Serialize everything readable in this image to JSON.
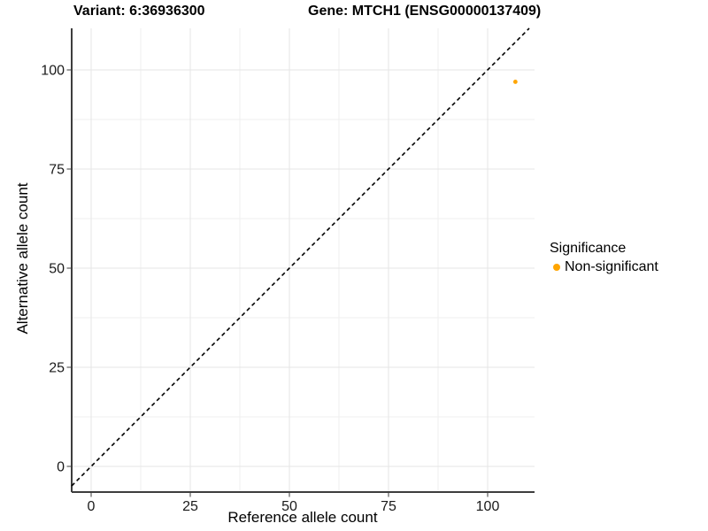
{
  "chart_data": {
    "type": "scatter",
    "title_left": "Variant: 6:36936300",
    "title_right": "Gene: MTCH1 (ENSG00000137409)",
    "xlabel": "Reference allele count",
    "ylabel": "Alternative allele count",
    "x_ticks": [
      0,
      25,
      50,
      75,
      100
    ],
    "y_ticks": [
      0,
      25,
      50,
      75,
      100
    ],
    "xlim": [
      -5,
      111.8
    ],
    "ylim": [
      -6.5,
      110.5
    ],
    "grid": {
      "major_every": 25,
      "minor_every": 12.5,
      "major_color": "#e6e6e6",
      "minor_color": "#efefef"
    },
    "reference_line": {
      "kind": "identity",
      "equation": "y = x",
      "style": "dashed",
      "color": "#000000"
    },
    "series": [
      {
        "name": "Non-significant",
        "color": "#FFA500",
        "points": [
          {
            "x": 107,
            "y": 97
          }
        ]
      }
    ],
    "legend": {
      "title": "Significance",
      "position": "right",
      "entries": [
        {
          "label": "Non-significant",
          "color": "#FFA500"
        }
      ]
    }
  }
}
